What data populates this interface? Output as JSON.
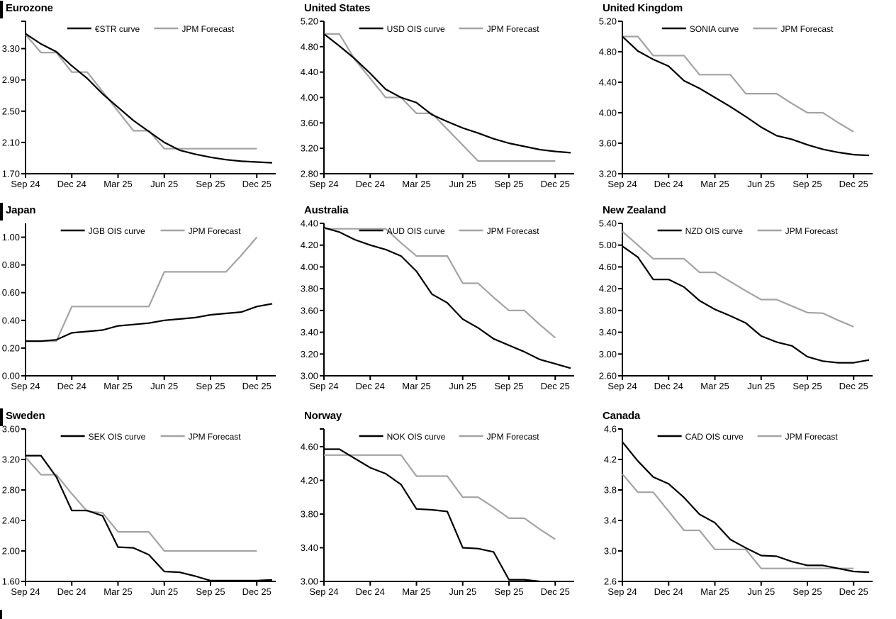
{
  "page": {
    "background": "#ffffff"
  },
  "colors": {
    "series_black": "#000000",
    "series_gray": "#a3a3a3",
    "axis": "#000000"
  },
  "x_tick_labels": [
    "Sep 24",
    "Dec 24",
    "Mar 25",
    "Jun 25",
    "Sep 25",
    "Dec 25"
  ],
  "chart_data": [
    {
      "type": "line",
      "title": "Eurozone",
      "ylim": [
        1.7,
        3.65
      ],
      "top_tick": true,
      "grid": false,
      "legend_position": "top-center",
      "ytick_values": [
        3.3,
        2.9,
        2.5,
        2.1,
        1.7
      ],
      "ytick_labels": [
        "3.30",
        "2.90",
        "2.50",
        "2.10",
        "1.70"
      ],
      "x": [
        "Sep 24",
        "Oct 24",
        "Nov 24",
        "Dec 24",
        "Jan 25",
        "Feb 25",
        "Mar 25",
        "Apr 25",
        "May 25",
        "Jun 25",
        "Jul 25",
        "Aug 25",
        "Sep 25",
        "Oct 25",
        "Nov 25",
        "Dec 25",
        "Jan 26"
      ],
      "series": [
        {
          "name": "€STR curve",
          "color": "#000000",
          "values": [
            3.49,
            3.36,
            3.26,
            3.08,
            2.92,
            2.72,
            2.55,
            2.38,
            2.24,
            2.1,
            2.0,
            1.95,
            1.91,
            1.88,
            1.86,
            1.85,
            1.84
          ]
        },
        {
          "name": "JPM Forecast",
          "color": "#a3a3a3",
          "values": [
            3.48,
            3.25,
            3.25,
            3.0,
            3.0,
            2.75,
            2.5,
            2.25,
            2.25,
            2.02,
            2.02,
            2.02,
            2.02,
            2.02,
            2.02,
            2.02,
            null
          ]
        }
      ]
    },
    {
      "type": "line",
      "title": "United States",
      "ylim": [
        2.8,
        5.2
      ],
      "top_tick": false,
      "grid": false,
      "legend_position": "top-center",
      "ytick_values": [
        5.2,
        4.8,
        4.4,
        4.0,
        3.6,
        3.2,
        2.8
      ],
      "ytick_labels": [
        "5.20",
        "4.80",
        "4.40",
        "4.00",
        "3.60",
        "3.20",
        "2.80"
      ],
      "x": [
        "Sep 24",
        "Oct 24",
        "Nov 24",
        "Dec 24",
        "Jan 25",
        "Feb 25",
        "Mar 25",
        "Apr 25",
        "May 25",
        "Jun 25",
        "Jul 25",
        "Aug 25",
        "Sep 25",
        "Oct 25",
        "Nov 25",
        "Dec 25",
        "Jan 26"
      ],
      "series": [
        {
          "name": "USD OIS curve",
          "color": "#000000",
          "values": [
            5.0,
            4.81,
            4.61,
            4.38,
            4.13,
            4.0,
            3.92,
            3.73,
            3.62,
            3.52,
            3.44,
            3.35,
            3.28,
            3.23,
            3.18,
            3.15,
            3.13
          ]
        },
        {
          "name": "JPM Forecast",
          "color": "#a3a3a3",
          "values": [
            5.0,
            5.0,
            4.6,
            4.3,
            4.0,
            4.0,
            3.75,
            3.75,
            3.5,
            3.25,
            3.0,
            3.0,
            3.0,
            3.0,
            3.0,
            3.0,
            null
          ]
        }
      ]
    },
    {
      "type": "line",
      "title": "United Kingdom",
      "ylim": [
        3.2,
        5.2
      ],
      "top_tick": false,
      "grid": false,
      "legend_position": "top-center",
      "ytick_values": [
        5.2,
        4.8,
        4.4,
        4.0,
        3.6,
        3.2
      ],
      "ytick_labels": [
        "5.20",
        "4.80",
        "4.40",
        "4.00",
        "3.60",
        "3.20"
      ],
      "x": [
        "Sep 24",
        "Oct 24",
        "Nov 24",
        "Dec 24",
        "Jan 25",
        "Feb 25",
        "Mar 25",
        "Apr 25",
        "May 25",
        "Jun 25",
        "Jul 25",
        "Aug 25",
        "Sep 25",
        "Oct 25",
        "Nov 25",
        "Dec 25",
        "Jan 26"
      ],
      "series": [
        {
          "name": "SONIA curve",
          "color": "#000000",
          "values": [
            5.0,
            4.81,
            4.7,
            4.61,
            4.42,
            4.32,
            4.2,
            4.08,
            3.95,
            3.81,
            3.7,
            3.65,
            3.58,
            3.52,
            3.48,
            3.45,
            3.44
          ]
        },
        {
          "name": "JPM Forecast",
          "color": "#a3a3a3",
          "values": [
            5.0,
            5.0,
            4.75,
            4.75,
            4.75,
            4.5,
            4.5,
            4.5,
            4.25,
            4.25,
            4.25,
            4.12,
            4.0,
            4.0,
            3.87,
            3.75,
            null
          ]
        }
      ]
    },
    {
      "type": "line",
      "title": "Japan",
      "ylim": [
        0.0,
        1.1
      ],
      "top_tick": false,
      "grid": false,
      "legend_position": "top-center",
      "ytick_values": [
        1.0,
        0.8,
        0.6,
        0.4,
        0.2,
        0.0
      ],
      "ytick_labels": [
        "1.00",
        "0.80",
        "0.60",
        "0.40",
        "0.20",
        "0.00"
      ],
      "x": [
        "Sep 24",
        "Oct 24",
        "Nov 24",
        "Dec 24",
        "Jan 25",
        "Feb 25",
        "Mar 25",
        "Apr 25",
        "May 25",
        "Jun 25",
        "Jul 25",
        "Aug 25",
        "Sep 25",
        "Oct 25",
        "Nov 25",
        "Dec 25",
        "Jan 26"
      ],
      "series": [
        {
          "name": "JGB OIS curve",
          "color": "#000000",
          "values": [
            0.25,
            0.25,
            0.26,
            0.31,
            0.32,
            0.33,
            0.36,
            0.37,
            0.38,
            0.4,
            0.41,
            0.42,
            0.44,
            0.45,
            0.46,
            0.5,
            0.52
          ]
        },
        {
          "name": "JPM Forecast",
          "color": "#a3a3a3",
          "values": [
            0.25,
            0.25,
            0.25,
            0.5,
            0.5,
            0.5,
            0.5,
            0.5,
            0.5,
            0.75,
            0.75,
            0.75,
            0.75,
            0.75,
            0.87,
            1.0,
            null
          ]
        }
      ]
    },
    {
      "type": "line",
      "title": "Australia",
      "ylim": [
        3.0,
        4.4
      ],
      "top_tick": false,
      "grid": false,
      "legend_position": "top-center",
      "ytick_values": [
        4.4,
        4.2,
        4.0,
        3.8,
        3.6,
        3.4,
        3.2,
        3.0
      ],
      "ytick_labels": [
        "4.40",
        "4.20",
        "4.00",
        "3.80",
        "3.60",
        "3.40",
        "3.20",
        "3.00"
      ],
      "x": [
        "Sep 24",
        "Oct 24",
        "Nov 24",
        "Dec 24",
        "Jan 25",
        "Feb 25",
        "Mar 25",
        "Apr 25",
        "May 25",
        "Jun 25",
        "Jul 25",
        "Aug 25",
        "Sep 25",
        "Oct 25",
        "Nov 25",
        "Dec 25",
        "Jan 26"
      ],
      "series": [
        {
          "name": "AUD OIS curve",
          "color": "#000000",
          "values": [
            4.36,
            4.32,
            4.25,
            4.2,
            4.16,
            4.1,
            3.96,
            3.75,
            3.67,
            3.52,
            3.44,
            3.34,
            3.28,
            3.22,
            3.15,
            3.11,
            3.07
          ]
        },
        {
          "name": "JPM Forecast",
          "color": "#a3a3a3",
          "values": [
            4.35,
            4.35,
            4.35,
            4.35,
            4.35,
            4.22,
            4.1,
            4.1,
            4.1,
            3.85,
            3.85,
            3.72,
            3.6,
            3.6,
            3.47,
            3.35,
            null
          ]
        }
      ]
    },
    {
      "type": "line",
      "title": "New Zealand",
      "ylim": [
        2.6,
        5.4
      ],
      "top_tick": false,
      "grid": false,
      "legend_position": "top-center",
      "ytick_values": [
        5.4,
        5.0,
        4.6,
        4.2,
        3.8,
        3.4,
        3.0,
        2.6
      ],
      "ytick_labels": [
        "5.40",
        "5.00",
        "4.60",
        "4.20",
        "3.80",
        "3.40",
        "3.00",
        "2.60"
      ],
      "x": [
        "Sep 24",
        "Oct 24",
        "Nov 24",
        "Dec 24",
        "Jan 25",
        "Feb 25",
        "Mar 25",
        "Apr 25",
        "May 25",
        "Jun 25",
        "Jul 25",
        "Aug 25",
        "Sep 25",
        "Oct 25",
        "Nov 25",
        "Dec 25",
        "Jan 26"
      ],
      "series": [
        {
          "name": "NZD OIS curve",
          "color": "#000000",
          "values": [
            4.98,
            4.78,
            4.37,
            4.37,
            4.23,
            3.98,
            3.82,
            3.7,
            3.57,
            3.33,
            3.22,
            3.15,
            2.95,
            2.87,
            2.84,
            2.84,
            2.89
          ]
        },
        {
          "name": "JPM Forecast",
          "color": "#a3a3a3",
          "values": [
            5.25,
            5.0,
            4.75,
            4.75,
            4.75,
            4.5,
            4.5,
            4.33,
            4.16,
            4.0,
            4.0,
            3.88,
            3.76,
            3.75,
            3.62,
            3.5,
            null
          ]
        }
      ]
    },
    {
      "type": "line",
      "title": "Sweden",
      "ylim": [
        1.6,
        3.6
      ],
      "top_tick": false,
      "grid": false,
      "legend_position": "top-center",
      "ytick_values": [
        3.6,
        3.2,
        2.8,
        2.4,
        2.0,
        1.6
      ],
      "ytick_labels": [
        "3.60",
        "3.20",
        "2.80",
        "2.40",
        "2.00",
        "1.60"
      ],
      "x": [
        "Sep 24",
        "Oct 24",
        "Nov 24",
        "Dec 24",
        "Jan 25",
        "Feb 25",
        "Mar 25",
        "Apr 25",
        "May 25",
        "Jun 25",
        "Jul 25",
        "Aug 25",
        "Sep 25",
        "Oct 25",
        "Nov 25",
        "Dec 25",
        "Jan 26"
      ],
      "series": [
        {
          "name": "SEK OIS curve",
          "color": "#000000",
          "values": [
            3.25,
            3.25,
            2.97,
            2.53,
            2.53,
            2.46,
            2.05,
            2.04,
            1.95,
            1.73,
            1.72,
            1.67,
            1.61,
            1.61,
            1.61,
            1.61,
            1.62
          ]
        },
        {
          "name": "JPM Forecast",
          "color": "#a3a3a3",
          "values": [
            3.23,
            3.0,
            3.0,
            2.75,
            2.52,
            2.5,
            2.25,
            2.25,
            2.25,
            2.0,
            2.0,
            2.0,
            2.0,
            2.0,
            2.0,
            2.0,
            null
          ]
        }
      ]
    },
    {
      "type": "line",
      "title": "Norway",
      "ylim": [
        3.0,
        4.81
      ],
      "top_tick": true,
      "grid": false,
      "legend_position": "top-center",
      "ytick_values": [
        4.6,
        4.2,
        3.8,
        3.4,
        3.0
      ],
      "ytick_labels": [
        "4.60",
        "4.20",
        "3.80",
        "3.40",
        "3.00"
      ],
      "x": [
        "Sep 24",
        "Oct 24",
        "Nov 24",
        "Dec 24",
        "Jan 25",
        "Feb 25",
        "Mar 25",
        "Apr 25",
        "May 25",
        "Jun 25",
        "Jul 25",
        "Aug 25",
        "Sep 25",
        "Oct 25",
        "Nov 25",
        "Dec 25",
        "Jan 26"
      ],
      "series": [
        {
          "name": "NOK OIS curve",
          "color": "#000000",
          "values": [
            4.57,
            4.57,
            4.46,
            4.35,
            4.28,
            4.15,
            3.86,
            3.85,
            3.83,
            3.4,
            3.39,
            3.35,
            3.02,
            3.02,
            3.0,
            null,
            null
          ]
        },
        {
          "name": "JPM Forecast",
          "color": "#a3a3a3",
          "values": [
            4.5,
            4.5,
            4.5,
            4.5,
            4.5,
            4.5,
            4.25,
            4.25,
            4.25,
            4.0,
            4.0,
            3.88,
            3.75,
            3.75,
            3.62,
            3.5,
            null
          ]
        }
      ]
    },
    {
      "type": "line",
      "title": "Canada",
      "ylim": [
        2.6,
        4.6
      ],
      "top_tick": false,
      "grid": false,
      "legend_position": "top-center",
      "ytick_values": [
        4.6,
        4.2,
        3.8,
        3.4,
        3.0,
        2.6
      ],
      "ytick_labels": [
        "4.6",
        "4.2",
        "3.8",
        "3.4",
        "3.0",
        "2.6"
      ],
      "x": [
        "Sep 24",
        "Oct 24",
        "Nov 24",
        "Dec 24",
        "Jan 25",
        "Feb 25",
        "Mar 25",
        "Apr 25",
        "May 25",
        "Jun 25",
        "Jul 25",
        "Aug 25",
        "Sep 25",
        "Oct 25",
        "Nov 25",
        "Dec 25",
        "Jan 26"
      ],
      "series": [
        {
          "name": "CAD OIS curve",
          "color": "#000000",
          "values": [
            4.43,
            4.18,
            3.97,
            3.88,
            3.7,
            3.48,
            3.37,
            3.15,
            3.04,
            2.94,
            2.93,
            2.86,
            2.81,
            2.81,
            2.77,
            2.73,
            2.72
          ]
        },
        {
          "name": "JPM Forecast",
          "color": "#a3a3a3",
          "values": [
            4.01,
            3.77,
            3.77,
            3.52,
            3.27,
            3.27,
            3.02,
            3.02,
            3.02,
            2.77,
            2.77,
            2.77,
            2.77,
            2.77,
            2.77,
            2.77,
            null
          ]
        }
      ]
    }
  ]
}
